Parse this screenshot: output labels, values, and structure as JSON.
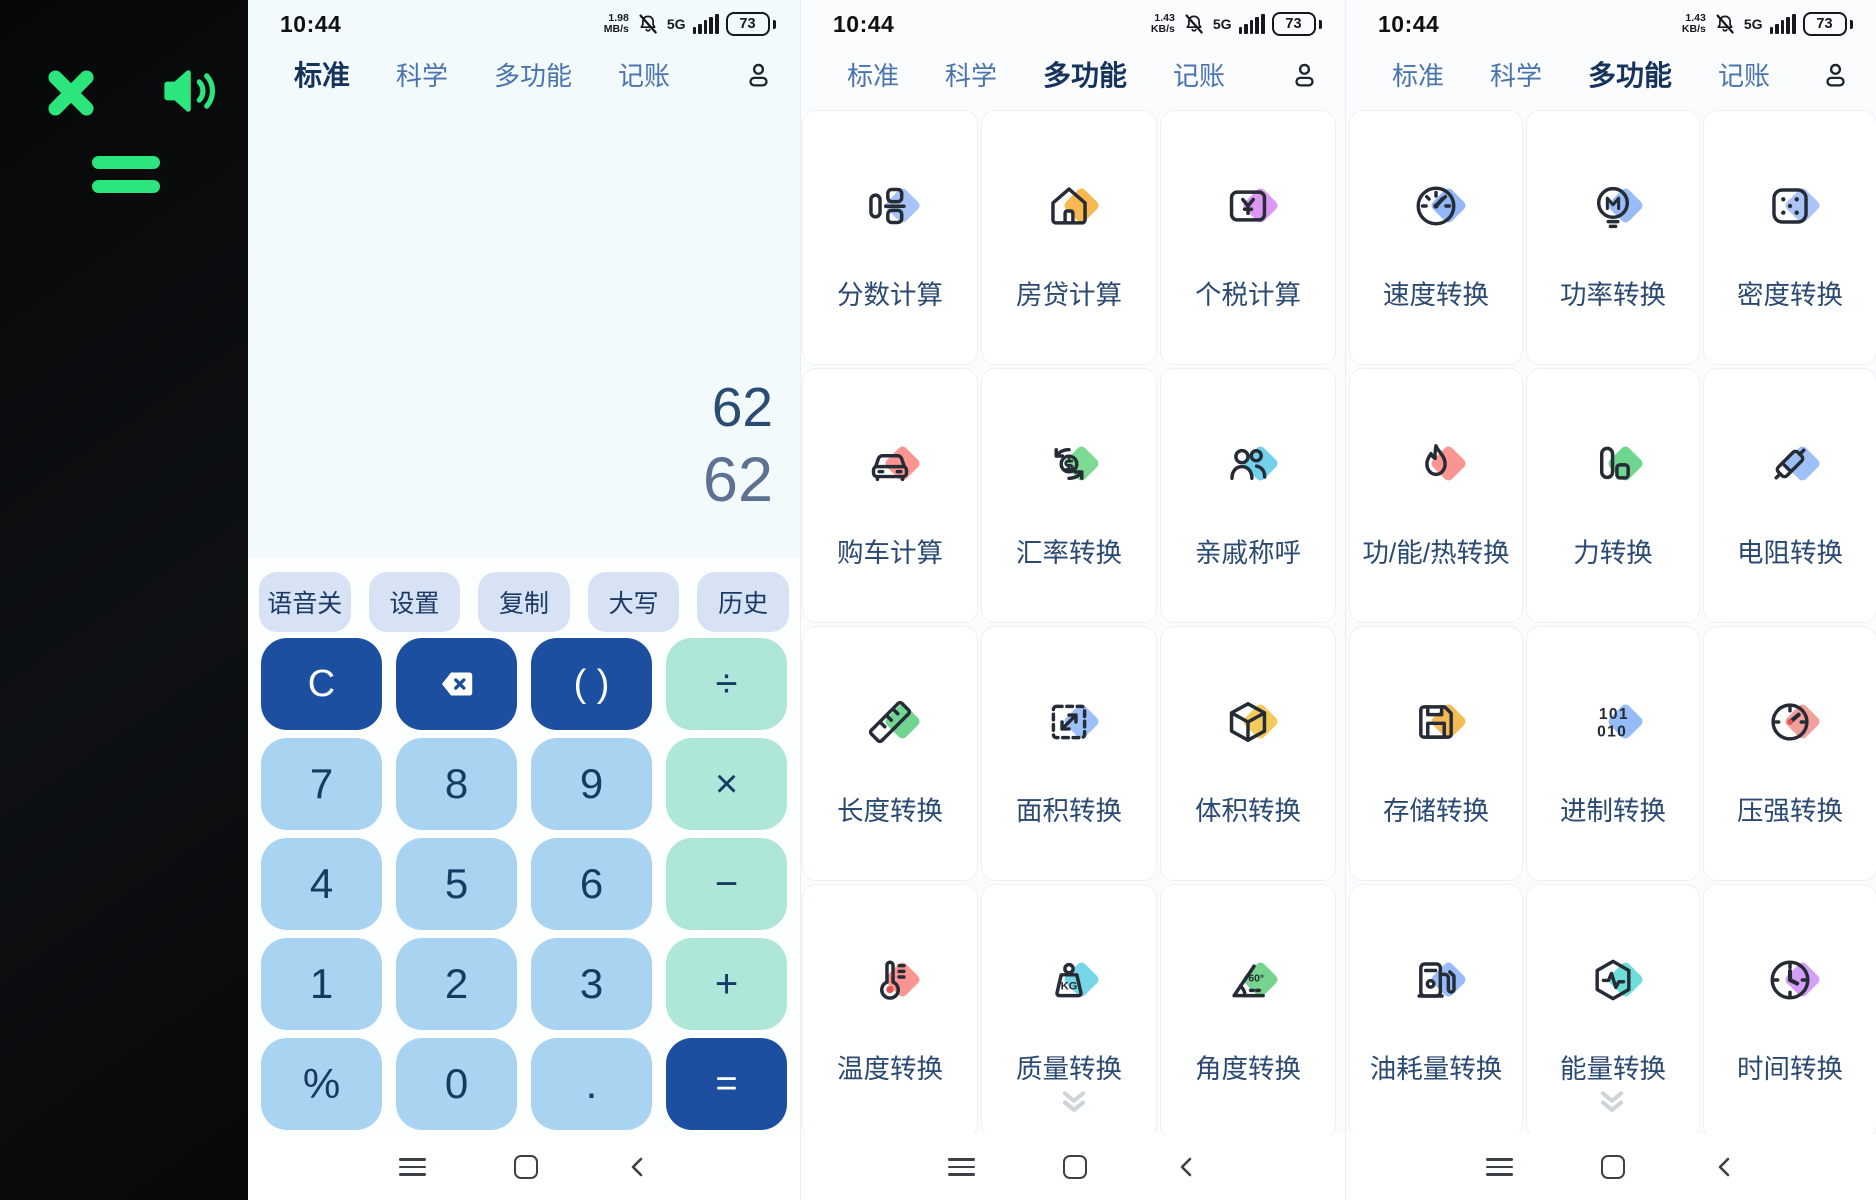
{
  "colors": {
    "green": "#2ce57d",
    "tab_selected": "#16335c",
    "tab_normal": "#4a74ae",
    "key_primary": "#1c4fa0",
    "key_digit": "#a9d4f1",
    "key_operator": "#afe6da",
    "display_bg": "#f2fafc",
    "num_primary": "#2a4b73",
    "num_secondary": "#5d7190"
  },
  "sidebar": {
    "icons": [
      "close-icon",
      "speaker-icon",
      "equals-icon"
    ]
  },
  "calculator": {
    "status": {
      "time": "10:44",
      "net_speed": "1.98",
      "net_unit": "MB/s",
      "net_gen": "5G",
      "battery": "73"
    },
    "tabs": [
      {
        "label": "标准",
        "selected": true
      },
      {
        "label": "科学"
      },
      {
        "label": "多功能"
      },
      {
        "label": "记账"
      }
    ],
    "display": {
      "line1": "62",
      "line2": "62"
    },
    "function_buttons": [
      "语音关",
      "设置",
      "复制",
      "大写",
      "历史"
    ],
    "keypad": [
      [
        {
          "label": "C",
          "variant": "primary"
        },
        {
          "icon": "backspace-icon",
          "variant": "primary"
        },
        {
          "label": "( )",
          "variant": "primary"
        },
        {
          "label": "÷",
          "variant": "operator"
        }
      ],
      [
        {
          "label": "7",
          "variant": "digit"
        },
        {
          "label": "8",
          "variant": "digit"
        },
        {
          "label": "9",
          "variant": "digit"
        },
        {
          "label": "×",
          "variant": "operator"
        }
      ],
      [
        {
          "label": "4",
          "variant": "digit"
        },
        {
          "label": "5",
          "variant": "digit"
        },
        {
          "label": "6",
          "variant": "digit"
        },
        {
          "label": "−",
          "variant": "operator"
        }
      ],
      [
        {
          "label": "1",
          "variant": "digit"
        },
        {
          "label": "2",
          "variant": "digit"
        },
        {
          "label": "3",
          "variant": "digit"
        },
        {
          "label": "+",
          "variant": "operator"
        }
      ],
      [
        {
          "label": "%",
          "variant": "digit"
        },
        {
          "label": "0",
          "variant": "digit"
        },
        {
          "label": ".",
          "variant": "digit"
        },
        {
          "label": "=",
          "variant": "primary"
        }
      ]
    ],
    "nav": [
      "menu-icon",
      "home-square-icon",
      "back-icon"
    ]
  },
  "grid_panels": [
    {
      "status": {
        "time": "10:44",
        "net_speed": "1.43",
        "net_unit": "KB/s",
        "net_gen": "5G",
        "battery": "73"
      },
      "tabs": [
        {
          "label": "标准"
        },
        {
          "label": "科学"
        },
        {
          "label": "多功能",
          "selected": true
        },
        {
          "label": "记账"
        }
      ],
      "cells": [
        {
          "label": "分数计算",
          "icon": "fraction-icon",
          "accent": "#9dbdf7"
        },
        {
          "label": "房贷计算",
          "icon": "house-icon",
          "accent": "#f6b03f"
        },
        {
          "label": "个税计算",
          "icon": "wallet-yen-icon",
          "accent": "#d98bf2"
        },
        {
          "label": "购车计算",
          "icon": "car-icon",
          "accent": "#f98a85"
        },
        {
          "label": "汇率转换",
          "icon": "currency-exchange-icon",
          "accent": "#6fd687"
        },
        {
          "label": "亲戚称呼",
          "icon": "relatives-icon",
          "accent": "#63cdeb"
        },
        {
          "label": "长度转换",
          "icon": "ruler-icon",
          "accent": "#62cf85"
        },
        {
          "label": "面积转换",
          "icon": "area-icon",
          "accent": "#93baf8"
        },
        {
          "label": "体积转换",
          "icon": "cube-icon",
          "accent": "#f2c54b"
        },
        {
          "label": "温度转换",
          "icon": "thermometer-icon",
          "accent": "#f98a85"
        },
        {
          "label": "质量转换",
          "icon": "kg-weight-icon",
          "accent": "#66d2e6"
        },
        {
          "label": "角度转换",
          "icon": "protractor-icon",
          "accent": "#67cf83"
        }
      ],
      "more_indicator": "chevrons-down-icon",
      "nav": [
        "menu-icon",
        "home-square-icon",
        "back-icon"
      ]
    },
    {
      "status": {
        "time": "10:44",
        "net_speed": "1.43",
        "net_unit": "KB/s",
        "net_gen": "5G",
        "battery": "73"
      },
      "tabs": [
        {
          "label": "标准"
        },
        {
          "label": "科学"
        },
        {
          "label": "多功能",
          "selected": true
        },
        {
          "label": "记账"
        }
      ],
      "cells": [
        {
          "label": "速度转换",
          "icon": "speedometer-icon",
          "accent": "#86aef6"
        },
        {
          "label": "功率转换",
          "icon": "power-meter-icon",
          "accent": "#8fb5f5"
        },
        {
          "label": "密度转换",
          "icon": "density-icon",
          "accent": "#a3bdf4"
        },
        {
          "label": "功/能/热转换",
          "icon": "flame-icon",
          "accent": "#f98a85"
        },
        {
          "label": "力转换",
          "icon": "force-icon",
          "accent": "#5fd184"
        },
        {
          "label": "电阻转换",
          "icon": "resistor-icon",
          "accent": "#92b9f7"
        },
        {
          "label": "存储转换",
          "icon": "floppy-icon",
          "accent": "#f2b244"
        },
        {
          "label": "进制转换",
          "icon": "binary-icon",
          "accent": "#8ab4f8"
        },
        {
          "label": "压强转换",
          "icon": "pressure-gauge-icon",
          "accent": "#f1948f"
        },
        {
          "label": "油耗量转换",
          "icon": "fuel-pump-icon",
          "accent": "#8db4f8"
        },
        {
          "label": "能量转换",
          "icon": "energy-icon",
          "accent": "#5cd9d4"
        },
        {
          "label": "时间转换",
          "icon": "clock-icon",
          "accent": "#cf92f5"
        }
      ],
      "more_indicator": "chevrons-down-icon",
      "nav": [
        "menu-icon",
        "home-square-icon",
        "back-icon"
      ]
    }
  ]
}
